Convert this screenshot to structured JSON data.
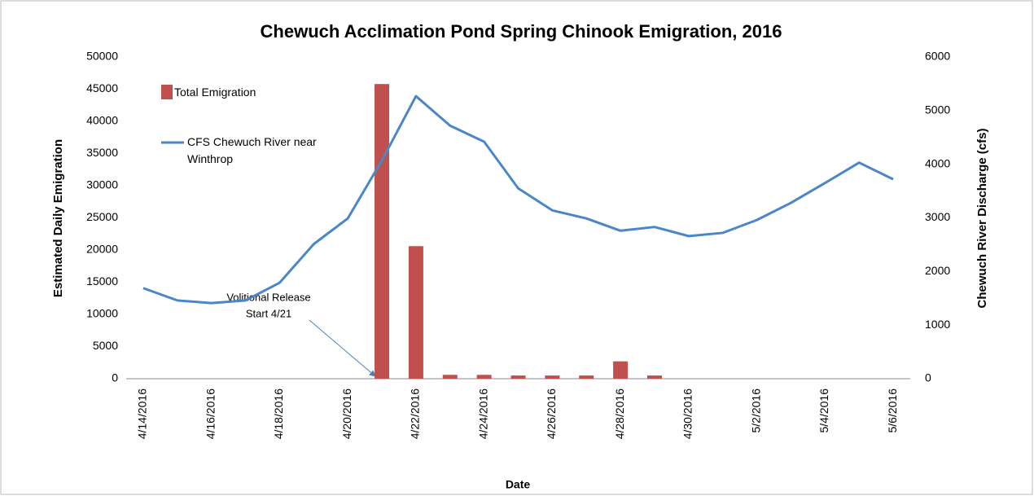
{
  "chart_data": {
    "type": "bar_line",
    "title": "Chewuch Acclimation Pond Spring Chinook Emigration, 2016",
    "x_label": "Date",
    "y_label": "Estimated Daily Emigration",
    "y2_label": "Chewuch River Discharge (cfs)",
    "annotation_lines": [
      "Volitional Release",
      "Start 4/21"
    ],
    "categories": [
      "4/14/2016",
      null,
      "4/16/2016",
      null,
      "4/18/2016",
      null,
      "4/20/2016",
      null,
      "4/22/2016",
      null,
      "4/24/2016",
      null,
      "4/26/2016",
      null,
      "4/28/2016",
      null,
      "4/30/2016",
      null,
      "5/2/2016",
      null,
      "5/4/2016",
      null,
      "5/6/2016"
    ],
    "series": [
      {
        "name": "Total Emigration",
        "type": "bar",
        "color": "#c0504d",
        "values": [
          null,
          null,
          null,
          null,
          null,
          null,
          null,
          45800,
          20600,
          600,
          600,
          500,
          500,
          500,
          2700,
          500,
          null,
          null,
          null,
          null,
          null,
          null,
          null
        ]
      },
      {
        "name": "CFS Chewuch River near Winthrop",
        "type": "line",
        "axis": "y2",
        "color": "#4a86c8",
        "values": [
          1690,
          1460,
          1410,
          1460,
          1790,
          2510,
          2990,
          4070,
          5270,
          4720,
          4420,
          3550,
          3140,
          2990,
          2760,
          2830,
          2660,
          2720,
          2960,
          3280,
          3650,
          4030,
          3720
        ]
      }
    ],
    "ylim": [
      0,
      50000
    ],
    "yticks": [
      0,
      5000,
      10000,
      15000,
      20000,
      25000,
      30000,
      35000,
      40000,
      45000,
      50000
    ],
    "y2lim": [
      0,
      6000
    ],
    "y2ticks": [
      0,
      1000,
      2000,
      3000,
      4000,
      5000,
      6000
    ],
    "grid": false,
    "legend": "upper left"
  }
}
